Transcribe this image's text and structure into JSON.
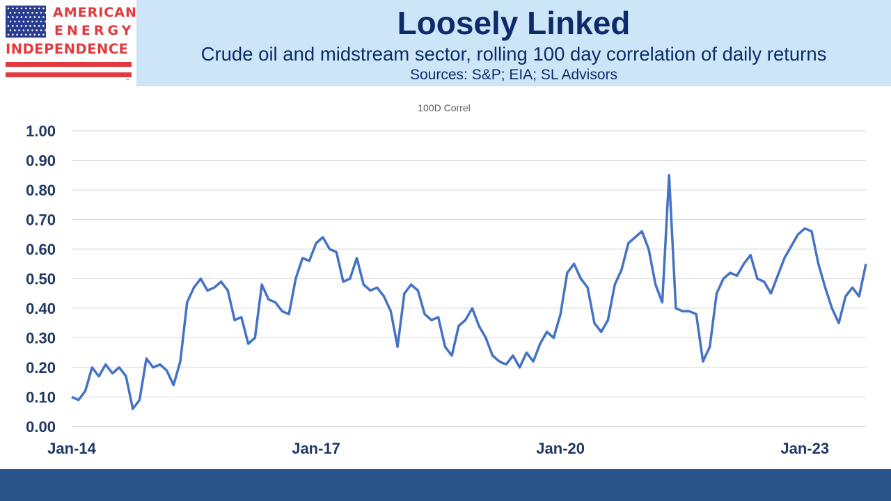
{
  "logo": {
    "line1": "AMERICAN",
    "line2": "ENERGY",
    "line3": "INDEPENDENCE",
    "trademark": "™",
    "colors": {
      "red": "#e03a3e",
      "blue": "#2a3c8f"
    }
  },
  "header": {
    "title": "Loosely Linked",
    "subtitle": "Crude oil and midstream sector, rolling 100 day correlation of daily returns",
    "sources": "Sources: S&P; EIA; SL Advisors"
  },
  "colors": {
    "header_band": "#cde6f7",
    "title_text": "#0d2b6b",
    "series_line": "#4472c4",
    "axis_text": "#1f3864",
    "footer_bar": "#28548a"
  },
  "chart_data": {
    "type": "line",
    "legend_title": "100D Correl",
    "x_tick_labels": [
      "Jan-14",
      "Jan-17",
      "Jan-20",
      "Jan-23"
    ],
    "y_tick_labels": [
      "0.00",
      "0.10",
      "0.20",
      "0.30",
      "0.40",
      "0.50",
      "0.60",
      "0.70",
      "0.80",
      "0.90",
      "1.00"
    ],
    "ylim": [
      0,
      1.0
    ],
    "xlim": [
      "2014-01",
      "2023-10"
    ],
    "grid": true,
    "series": [
      {
        "name": "100D Correl",
        "points": [
          [
            "2014-01",
            0.1
          ],
          [
            "2014-02",
            0.09
          ],
          [
            "2014-03",
            0.12
          ],
          [
            "2014-04",
            0.2
          ],
          [
            "2014-05",
            0.17
          ],
          [
            "2014-06",
            0.21
          ],
          [
            "2014-07",
            0.18
          ],
          [
            "2014-08",
            0.2
          ],
          [
            "2014-09",
            0.17
          ],
          [
            "2014-10",
            0.06
          ],
          [
            "2014-11",
            0.09
          ],
          [
            "2014-12",
            0.23
          ],
          [
            "2015-01",
            0.2
          ],
          [
            "2015-02",
            0.21
          ],
          [
            "2015-03",
            0.19
          ],
          [
            "2015-04",
            0.14
          ],
          [
            "2015-05",
            0.22
          ],
          [
            "2015-06",
            0.42
          ],
          [
            "2015-07",
            0.47
          ],
          [
            "2015-08",
            0.5
          ],
          [
            "2015-09",
            0.46
          ],
          [
            "2015-10",
            0.47
          ],
          [
            "2015-11",
            0.49
          ],
          [
            "2015-12",
            0.46
          ],
          [
            "2016-01",
            0.36
          ],
          [
            "2016-02",
            0.37
          ],
          [
            "2016-03",
            0.28
          ],
          [
            "2016-04",
            0.3
          ],
          [
            "2016-05",
            0.48
          ],
          [
            "2016-06",
            0.43
          ],
          [
            "2016-07",
            0.42
          ],
          [
            "2016-08",
            0.39
          ],
          [
            "2016-09",
            0.38
          ],
          [
            "2016-10",
            0.5
          ],
          [
            "2016-11",
            0.57
          ],
          [
            "2016-12",
            0.56
          ],
          [
            "2017-01",
            0.62
          ],
          [
            "2017-02",
            0.64
          ],
          [
            "2017-03",
            0.6
          ],
          [
            "2017-04",
            0.59
          ],
          [
            "2017-05",
            0.49
          ],
          [
            "2017-06",
            0.5
          ],
          [
            "2017-07",
            0.57
          ],
          [
            "2017-08",
            0.48
          ],
          [
            "2017-09",
            0.46
          ],
          [
            "2017-10",
            0.47
          ],
          [
            "2017-11",
            0.44
          ],
          [
            "2017-12",
            0.39
          ],
          [
            "2018-01",
            0.27
          ],
          [
            "2018-02",
            0.45
          ],
          [
            "2018-03",
            0.48
          ],
          [
            "2018-04",
            0.46
          ],
          [
            "2018-05",
            0.38
          ],
          [
            "2018-06",
            0.36
          ],
          [
            "2018-07",
            0.37
          ],
          [
            "2018-08",
            0.27
          ],
          [
            "2018-09",
            0.24
          ],
          [
            "2018-10",
            0.34
          ],
          [
            "2018-11",
            0.36
          ],
          [
            "2018-12",
            0.4
          ],
          [
            "2019-01",
            0.34
          ],
          [
            "2019-02",
            0.3
          ],
          [
            "2019-03",
            0.24
          ],
          [
            "2019-04",
            0.22
          ],
          [
            "2019-05",
            0.21
          ],
          [
            "2019-06",
            0.24
          ],
          [
            "2019-07",
            0.2
          ],
          [
            "2019-08",
            0.25
          ],
          [
            "2019-09",
            0.22
          ],
          [
            "2019-10",
            0.28
          ],
          [
            "2019-11",
            0.32
          ],
          [
            "2019-12",
            0.3
          ],
          [
            "2020-01",
            0.38
          ],
          [
            "2020-02",
            0.52
          ],
          [
            "2020-03",
            0.55
          ],
          [
            "2020-04",
            0.5
          ],
          [
            "2020-05",
            0.47
          ],
          [
            "2020-06",
            0.35
          ],
          [
            "2020-07",
            0.32
          ],
          [
            "2020-08",
            0.36
          ],
          [
            "2020-09",
            0.48
          ],
          [
            "2020-10",
            0.53
          ],
          [
            "2020-11",
            0.62
          ],
          [
            "2020-12",
            0.64
          ],
          [
            "2021-01",
            0.66
          ],
          [
            "2021-02",
            0.6
          ],
          [
            "2021-03",
            0.48
          ],
          [
            "2021-04",
            0.42
          ],
          [
            "2021-05",
            0.85
          ],
          [
            "2021-06",
            0.4
          ],
          [
            "2021-07",
            0.39
          ],
          [
            "2021-08",
            0.39
          ],
          [
            "2021-09",
            0.38
          ],
          [
            "2021-10",
            0.22
          ],
          [
            "2021-11",
            0.27
          ],
          [
            "2021-12",
            0.45
          ],
          [
            "2022-01",
            0.5
          ],
          [
            "2022-02",
            0.52
          ],
          [
            "2022-03",
            0.51
          ],
          [
            "2022-04",
            0.55
          ],
          [
            "2022-05",
            0.58
          ],
          [
            "2022-06",
            0.5
          ],
          [
            "2022-07",
            0.49
          ],
          [
            "2022-08",
            0.45
          ],
          [
            "2022-09",
            0.51
          ],
          [
            "2022-10",
            0.57
          ],
          [
            "2022-11",
            0.61
          ],
          [
            "2022-12",
            0.65
          ],
          [
            "2023-01",
            0.67
          ],
          [
            "2023-02",
            0.66
          ],
          [
            "2023-03",
            0.55
          ],
          [
            "2023-04",
            0.47
          ],
          [
            "2023-05",
            0.4
          ],
          [
            "2023-06",
            0.35
          ],
          [
            "2023-07",
            0.44
          ],
          [
            "2023-08",
            0.47
          ],
          [
            "2023-09",
            0.44
          ],
          [
            "2023-10",
            0.55
          ]
        ]
      }
    ]
  }
}
